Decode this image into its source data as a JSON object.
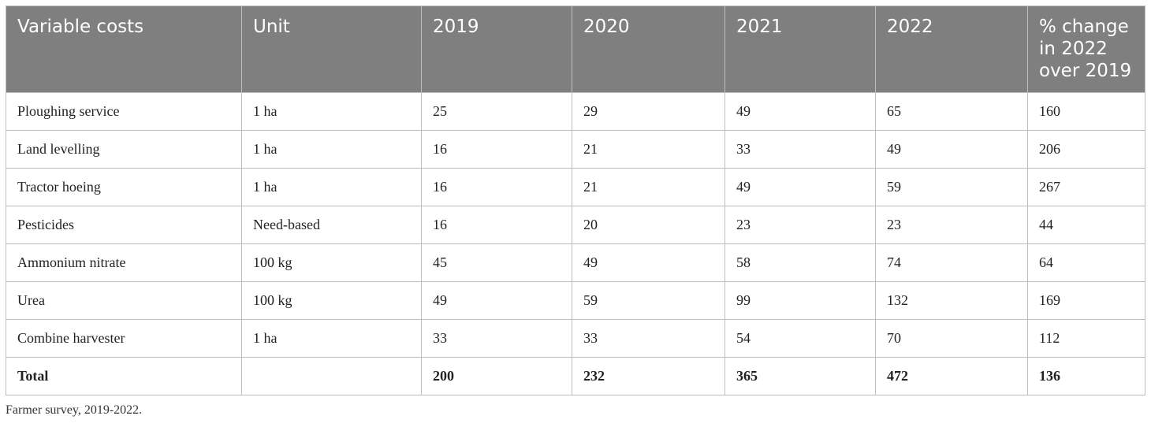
{
  "table": {
    "headers": [
      "Variable costs",
      "Unit",
      "2019",
      "2020",
      "2021",
      "2022",
      "% change in 2022 over 2019"
    ],
    "rows": [
      [
        "Ploughing service",
        "1 ha",
        "25",
        "29",
        "49",
        "65",
        "160"
      ],
      [
        "Land levelling",
        "1 ha",
        "16",
        "21",
        "33",
        "49",
        "206"
      ],
      [
        "Tractor hoeing",
        "1 ha",
        "16",
        "21",
        "49",
        "59",
        "267"
      ],
      [
        "Pesticides",
        "Need-based",
        "16",
        "20",
        "23",
        "23",
        "44"
      ],
      [
        "Ammonium nitrate",
        "100 kg",
        "45",
        "49",
        "58",
        "74",
        "64"
      ],
      [
        "Urea",
        "100 kg",
        "49",
        "59",
        "99",
        "132",
        "169"
      ],
      [
        "Combine harvester",
        "1 ha",
        "33",
        "33",
        "54",
        "70",
        "112"
      ]
    ],
    "total": [
      "Total",
      "",
      "200",
      "232",
      "365",
      "472",
      "136"
    ]
  },
  "footnote": "Farmer survey, 2019-2022.",
  "colors": {
    "header_bg": "#7f7f7f",
    "header_text": "#ffffff",
    "border": "#bdbdbd"
  }
}
